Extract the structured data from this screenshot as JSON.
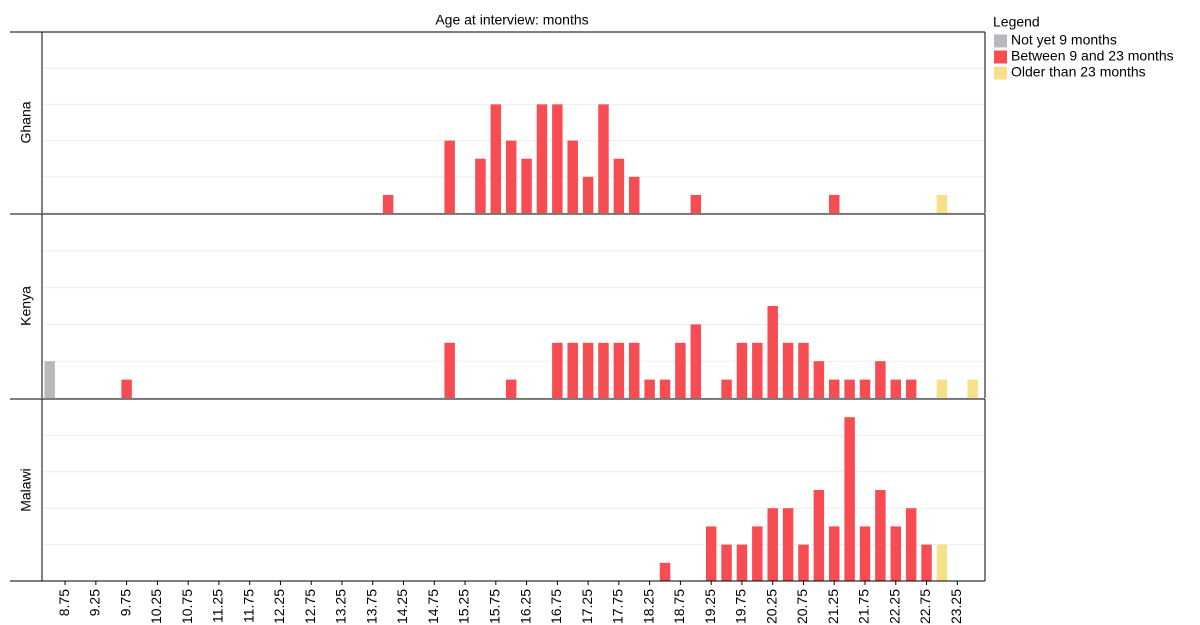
{
  "chart_data": {
    "type": "bar",
    "title": "Age at interview: months",
    "legend_title": "Legend",
    "legend": "outside-top-right",
    "grid": true,
    "xlim": [
      8.375,
      23.7
    ],
    "xticks": [
      8.75,
      9.25,
      9.75,
      10.25,
      10.75,
      11.25,
      11.75,
      12.25,
      12.75,
      13.25,
      13.75,
      14.25,
      14.75,
      15.25,
      15.75,
      16.25,
      16.75,
      17.25,
      17.75,
      18.25,
      18.75,
      19.25,
      19.75,
      20.25,
      20.75,
      21.25,
      21.75,
      22.25,
      22.75,
      23.25
    ],
    "ylim": [
      0,
      10
    ],
    "yticks": [
      0,
      2,
      4,
      6,
      8,
      10
    ],
    "facets": [
      {
        "label": "Ghana",
        "series": [
          {
            "name": "Not yet 9 months",
            "color": "#b9b9bd",
            "x": [],
            "values": []
          },
          {
            "name": "Between 9 and 23 months",
            "color": "#f64c52",
            "x": [
              14.0,
              15.0,
              15.5,
              15.75,
              16.0,
              16.25,
              16.5,
              16.75,
              17.0,
              17.25,
              17.5,
              17.75,
              18.0,
              19.0,
              21.25
            ],
            "values": [
              1,
              4,
              3,
              6,
              4,
              3,
              6,
              6,
              4,
              2,
              6,
              3,
              2,
              1,
              1
            ]
          },
          {
            "name": "Older than 23 months",
            "color": "#f8df8a",
            "x": [
              23.0
            ],
            "values": [
              1
            ]
          }
        ]
      },
      {
        "label": "Kenya",
        "series": [
          {
            "name": "Not yet 9 months",
            "color": "#b9b9bd",
            "x": [
              8.5
            ],
            "values": [
              2
            ]
          },
          {
            "name": "Between 9 and 23 months",
            "color": "#f64c52",
            "x": [
              9.75,
              15.0,
              16.0,
              16.75,
              17.0,
              17.25,
              17.5,
              17.75,
              18.0,
              18.25,
              18.5,
              18.75,
              19.0,
              19.5,
              19.75,
              20.0,
              20.25,
              20.5,
              20.75,
              21.0,
              21.25,
              21.5,
              21.75,
              22.0,
              22.25,
              22.5
            ],
            "values": [
              1,
              3,
              1,
              3,
              3,
              3,
              3,
              3,
              3,
              1,
              1,
              3,
              4,
              1,
              3,
              3,
              5,
              3,
              3,
              2,
              1,
              1,
              1,
              2,
              1,
              1
            ]
          },
          {
            "name": "Older than 23 months",
            "color": "#f8df8a",
            "x": [
              23.0,
              23.5
            ],
            "values": [
              1,
              1
            ]
          }
        ]
      },
      {
        "label": "Malawi",
        "series": [
          {
            "name": "Not yet 9 months",
            "color": "#b9b9bd",
            "x": [],
            "values": []
          },
          {
            "name": "Between 9 and 23 months",
            "color": "#f64c52",
            "x": [
              18.5,
              19.25,
              19.5,
              19.75,
              20.0,
              20.25,
              20.5,
              20.75,
              21.0,
              21.25,
              21.5,
              21.75,
              22.0,
              22.25,
              22.5,
              22.75
            ],
            "values": [
              1,
              3,
              2,
              2,
              3,
              4,
              4,
              2,
              5,
              3,
              9,
              3,
              5,
              3,
              4,
              2
            ]
          },
          {
            "name": "Older than 23 months",
            "color": "#f8df8a",
            "x": [
              23.0
            ],
            "values": [
              2
            ]
          }
        ]
      }
    ]
  }
}
